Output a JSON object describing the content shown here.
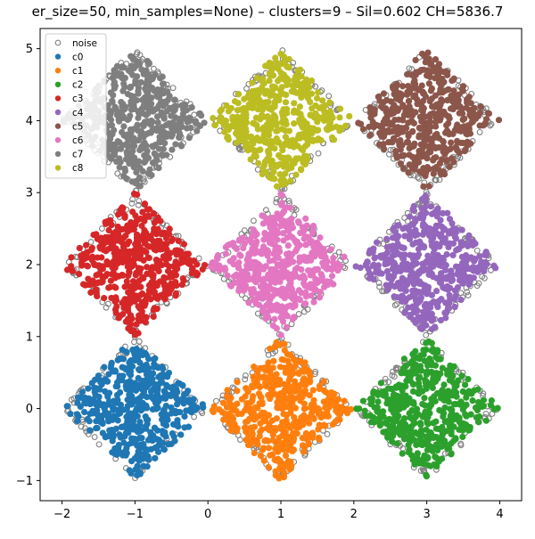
{
  "chart_data": {
    "type": "scatter",
    "title": "er_size=50, min_samples=None) – clusters=9 – Sil=0.602  CH=5836.7",
    "xlabel": "",
    "ylabel": "",
    "xlim": [
      -2.3,
      4.3
    ],
    "ylim": [
      -1.28,
      5.28
    ],
    "x_ticks": [
      -2,
      -1,
      0,
      1,
      2,
      3,
      4
    ],
    "y_ticks": [
      -1,
      0,
      1,
      2,
      3,
      4,
      5
    ],
    "x_tick_labels": [
      "−2",
      "−1",
      "0",
      "1",
      "2",
      "3",
      "4"
    ],
    "y_tick_labels": [
      "−1",
      "0",
      "1",
      "2",
      "3",
      "4",
      "5"
    ],
    "grid": false,
    "legend_position": "top-left",
    "marker": "circle",
    "points_per_cluster_approx": 550,
    "noise_style": "hollow",
    "series": [
      {
        "name": "noise",
        "color": "#808080",
        "hollow": true
      },
      {
        "name": "c0",
        "color": "#1f77b4",
        "center": [
          -1,
          0
        ],
        "half_width": 1.0
      },
      {
        "name": "c1",
        "color": "#ff7f0e",
        "center": [
          1,
          0
        ],
        "half_width": 1.0
      },
      {
        "name": "c2",
        "color": "#2ca02c",
        "center": [
          3,
          0
        ],
        "half_width": 1.0
      },
      {
        "name": "c3",
        "color": "#d62728",
        "center": [
          -1,
          2
        ],
        "half_width": 1.0
      },
      {
        "name": "c4",
        "color": "#9467bd",
        "center": [
          3,
          2
        ],
        "half_width": 1.0
      },
      {
        "name": "c5",
        "color": "#8c564b",
        "center": [
          3,
          4
        ],
        "half_width": 1.0
      },
      {
        "name": "c6",
        "color": "#e377c2",
        "center": [
          1,
          2
        ],
        "half_width": 1.0
      },
      {
        "name": "c7",
        "color": "#7f7f7f",
        "center": [
          -1,
          4
        ],
        "half_width": 1.0
      },
      {
        "name": "c8",
        "color": "#bcbd22",
        "center": [
          1,
          4
        ],
        "half_width": 1.0
      }
    ]
  }
}
